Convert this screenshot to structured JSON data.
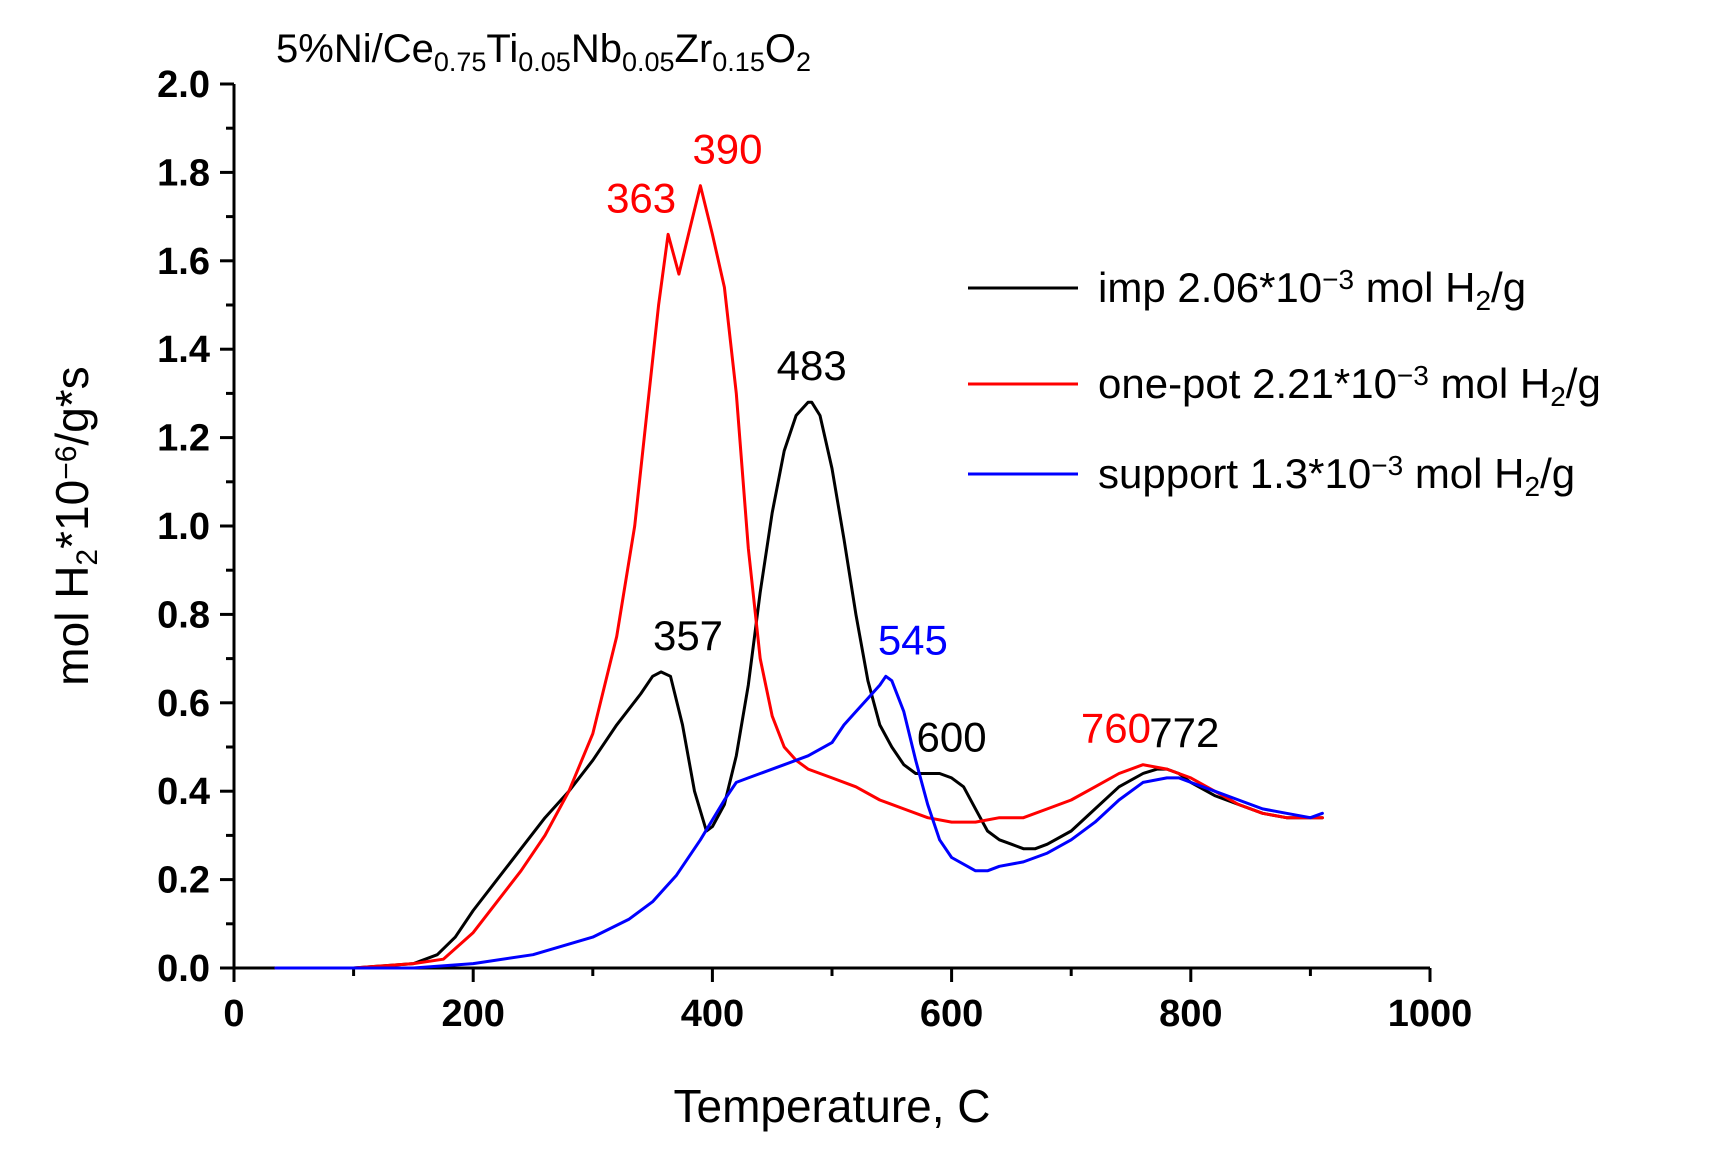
{
  "chart_data": {
    "type": "line",
    "title": {
      "prefix": "5%Ni/Ce",
      "parts": [
        {
          "text": "0.75",
          "sub": true
        },
        {
          "text": "Ti",
          "sub": false
        },
        {
          "text": "0.05",
          "sub": true
        },
        {
          "text": "Nb",
          "sub": false
        },
        {
          "text": "0.05",
          "sub": true
        },
        {
          "text": "Zr",
          "sub": false
        },
        {
          "text": "0.15",
          "sub": true
        },
        {
          "text": "O",
          "sub": false
        },
        {
          "text": "2",
          "sub": true
        }
      ]
    },
    "xlabel": "Temperature, C",
    "ylabel": {
      "parts": [
        {
          "text": "mol H",
          "style": "normal"
        },
        {
          "text": "2",
          "style": "sub"
        },
        {
          "text": "*10",
          "style": "normal"
        },
        {
          "text": "−6",
          "style": "sup"
        },
        {
          "text": "/g*s",
          "style": "normal"
        }
      ]
    },
    "xlim": [
      0,
      1000
    ],
    "ylim": [
      0,
      2.0
    ],
    "x_ticks": [
      0,
      200,
      400,
      600,
      800,
      1000
    ],
    "x_tick_labels": [
      "0",
      "200",
      "400",
      "600",
      "800",
      "1000"
    ],
    "y_ticks": [
      0.0,
      0.2,
      0.4,
      0.6,
      0.8,
      1.0,
      1.2,
      1.4,
      1.6,
      1.8,
      2.0
    ],
    "y_tick_labels": [
      "0.0",
      "0.2",
      "0.4",
      "0.6",
      "0.8",
      "1.0",
      "1.2",
      "1.4",
      "1.6",
      "1.8",
      "2.0"
    ],
    "legend_position": "top-right",
    "series": [
      {
        "name": "imp",
        "color": "#000000",
        "legend": {
          "main": "imp 2.06*10",
          "sup": "−3",
          "unit": " mol H",
          "sub": "2",
          "tail": "/g"
        },
        "x": [
          35,
          100,
          150,
          170,
          185,
          200,
          220,
          240,
          260,
          280,
          300,
          320,
          340,
          350,
          357,
          365,
          375,
          385,
          395,
          400,
          410,
          420,
          430,
          440,
          450,
          460,
          470,
          480,
          483,
          490,
          500,
          510,
          520,
          530,
          540,
          550,
          560,
          570,
          580,
          590,
          600,
          610,
          620,
          630,
          640,
          650,
          660,
          670,
          680,
          700,
          720,
          740,
          760,
          772,
          780,
          790,
          800,
          820,
          840,
          860,
          880,
          900,
          910
        ],
        "y": [
          0.0,
          0.0,
          0.01,
          0.03,
          0.07,
          0.13,
          0.2,
          0.27,
          0.34,
          0.4,
          0.47,
          0.55,
          0.62,
          0.66,
          0.67,
          0.66,
          0.55,
          0.4,
          0.31,
          0.32,
          0.37,
          0.48,
          0.64,
          0.85,
          1.03,
          1.17,
          1.25,
          1.28,
          1.28,
          1.25,
          1.13,
          0.97,
          0.8,
          0.65,
          0.55,
          0.5,
          0.46,
          0.44,
          0.44,
          0.44,
          0.43,
          0.41,
          0.36,
          0.31,
          0.29,
          0.28,
          0.27,
          0.27,
          0.28,
          0.31,
          0.36,
          0.41,
          0.44,
          0.45,
          0.45,
          0.44,
          0.42,
          0.39,
          0.37,
          0.35,
          0.34,
          0.34,
          0.34
        ]
      },
      {
        "name": "one-pot",
        "color": "#ff0000",
        "legend": {
          "main": "one-pot 2.21*10",
          "sup": "−3",
          "unit": " mol H",
          "sub": "2",
          "tail": "/g"
        },
        "x": [
          35,
          100,
          150,
          175,
          200,
          220,
          240,
          260,
          280,
          300,
          320,
          335,
          345,
          355,
          363,
          372,
          380,
          390,
          400,
          410,
          420,
          430,
          440,
          450,
          460,
          470,
          480,
          500,
          520,
          540,
          560,
          580,
          600,
          620,
          640,
          660,
          680,
          700,
          720,
          740,
          760,
          780,
          800,
          820,
          840,
          860,
          880,
          900,
          910
        ],
        "y": [
          0.0,
          0.0,
          0.01,
          0.02,
          0.08,
          0.15,
          0.22,
          0.3,
          0.4,
          0.53,
          0.75,
          1.0,
          1.25,
          1.5,
          1.66,
          1.57,
          1.66,
          1.77,
          1.66,
          1.54,
          1.3,
          0.95,
          0.7,
          0.57,
          0.5,
          0.47,
          0.45,
          0.43,
          0.41,
          0.38,
          0.36,
          0.34,
          0.33,
          0.33,
          0.34,
          0.34,
          0.36,
          0.38,
          0.41,
          0.44,
          0.46,
          0.45,
          0.43,
          0.4,
          0.37,
          0.35,
          0.34,
          0.34,
          0.34
        ]
      },
      {
        "name": "support",
        "color": "#0000ff",
        "legend": {
          "main": "support 1.3*10",
          "sup": "−3",
          "unit": " mol H",
          "sub": "2",
          "tail": "/g"
        },
        "x": [
          35,
          150,
          200,
          250,
          300,
          330,
          350,
          370,
          390,
          410,
          420,
          430,
          440,
          460,
          480,
          500,
          510,
          520,
          530,
          540,
          545,
          550,
          560,
          570,
          580,
          590,
          600,
          620,
          630,
          640,
          660,
          680,
          700,
          720,
          740,
          760,
          780,
          790,
          800,
          820,
          840,
          860,
          880,
          900,
          910
        ],
        "y": [
          0.0,
          0.0,
          0.01,
          0.03,
          0.07,
          0.11,
          0.15,
          0.21,
          0.29,
          0.38,
          0.42,
          0.43,
          0.44,
          0.46,
          0.48,
          0.51,
          0.55,
          0.58,
          0.61,
          0.64,
          0.66,
          0.65,
          0.58,
          0.47,
          0.37,
          0.29,
          0.25,
          0.22,
          0.22,
          0.23,
          0.24,
          0.26,
          0.29,
          0.33,
          0.38,
          0.42,
          0.43,
          0.43,
          0.42,
          0.4,
          0.38,
          0.36,
          0.35,
          0.34,
          0.35
        ]
      }
    ],
    "annotations": [
      {
        "text": "363",
        "x": 363,
        "y": 1.66,
        "color": "#ff0000",
        "anchor": "end"
      },
      {
        "text": "390",
        "x": 390,
        "y": 1.77,
        "color": "#ff0000",
        "anchor": "start"
      },
      {
        "text": "483",
        "x": 483,
        "y": 1.28,
        "color": "#000000",
        "anchor": "middle"
      },
      {
        "text": "357",
        "x": 357,
        "y": 0.67,
        "color": "#000000",
        "anchor": "start"
      },
      {
        "text": "545",
        "x": 545,
        "y": 0.66,
        "color": "#0000ff",
        "anchor": "start"
      },
      {
        "text": "600",
        "x": 600,
        "y": 0.44,
        "color": "#000000",
        "anchor": "middle"
      },
      {
        "text": "760",
        "x": 760,
        "y": 0.46,
        "color": "#ff0000",
        "anchor": "end"
      },
      {
        "text": "772",
        "x": 772,
        "y": 0.45,
        "color": "#000000",
        "anchor": "start"
      }
    ]
  }
}
